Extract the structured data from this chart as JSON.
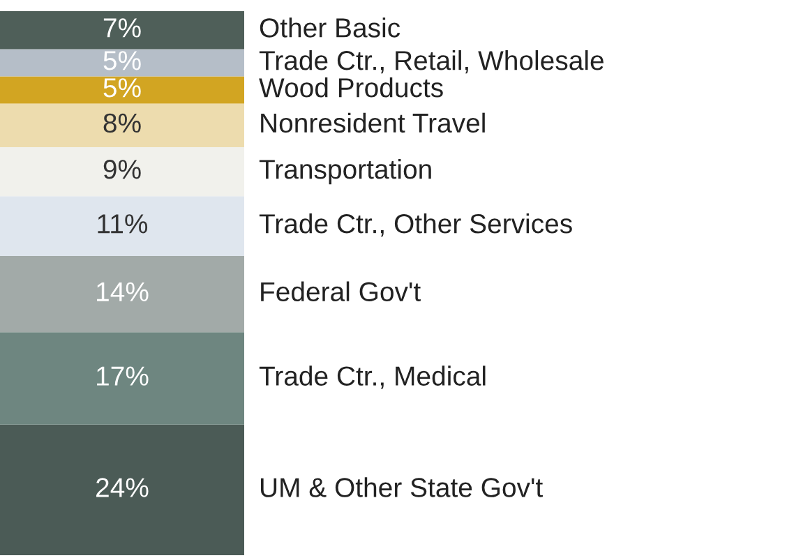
{
  "chart_data": {
    "type": "bar",
    "stacked": true,
    "categories": [
      null
    ],
    "series": [
      {
        "name": "UM & Other State Gov't",
        "color": "#4b5b56",
        "values": [
          24
        ],
        "value_labels": [
          "24%"
        ]
      },
      {
        "name": "Trade Ctr., Medical",
        "color": "#6e8680",
        "values": [
          17
        ],
        "value_labels": [
          "17%"
        ]
      },
      {
        "name": "Federal Gov't",
        "color": "#a2aaa8",
        "values": [
          14
        ],
        "value_labels": [
          "14%"
        ]
      },
      {
        "name": "Trade Ctr., Other Services",
        "color": "#dfe6ee",
        "values": [
          11
        ],
        "value_labels": [
          "11%"
        ]
      },
      {
        "name": "Transportation",
        "color": "#f1f1ec",
        "values": [
          9
        ],
        "value_labels": [
          "9%"
        ]
      },
      {
        "name": "Nonresident Travel",
        "color": "#eddcae",
        "values": [
          8
        ],
        "value_labels": [
          "8%"
        ]
      },
      {
        "name": "Wood Products",
        "color": "#d2a522",
        "values": [
          5
        ],
        "value_labels": [
          "5%"
        ]
      },
      {
        "name": "Trade Ctr., Retail, Wholesale",
        "color": "#b5bec8",
        "values": [
          5
        ],
        "value_labels": [
          "5%"
        ]
      },
      {
        "name": "Other Basic",
        "color": "#4f5f59",
        "values": [
          7
        ],
        "value_labels": [
          "7%"
        ]
      }
    ]
  }
}
